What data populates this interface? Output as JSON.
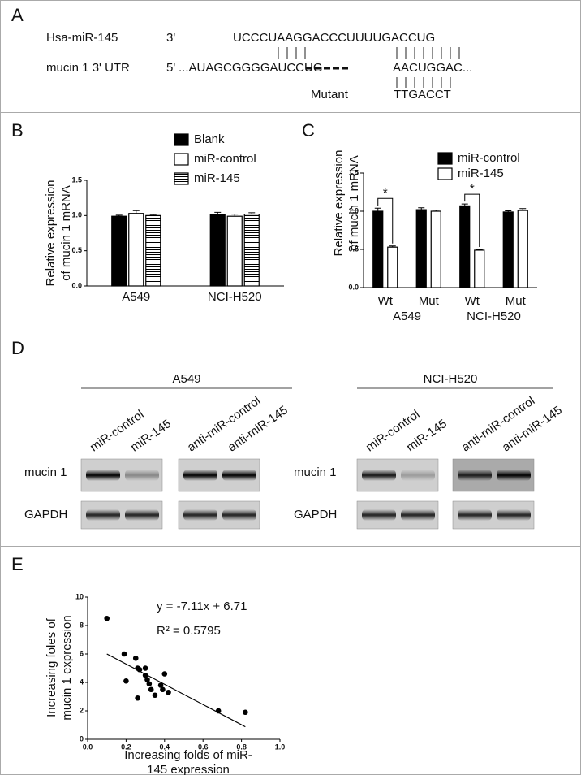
{
  "panel_labels": [
    "A",
    "B",
    "C",
    "D",
    "E"
  ],
  "sequence_alignment": {
    "rows": [
      {
        "name": "Hsa-miR-145",
        "end": "3'",
        "sequence": [
          "UCCCUAAGGACCCUUUUGACCUG"
        ]
      },
      {
        "name": "mucin 1 3' UTR",
        "end": "5'",
        "sequence": [
          "...AUAGCGGGGAUCCUG",
          "AACUGGAC..."
        ]
      }
    ],
    "mutant": {
      "label": "Mutant",
      "sequence": "TTGACCT"
    }
  },
  "western_blot": {
    "row_labels": [
      "mucin 1",
      "GAPDH"
    ],
    "groups": [
      {
        "title": "A549",
        "lanes": [
          "miR-control",
          "miR-145",
          "anti-miR-control",
          "anti-miR-145"
        ]
      },
      {
        "title": "NCI-H520",
        "lanes": [
          "miR-control",
          "miR-145",
          "anti-miR-control",
          "anti-miR-145"
        ]
      }
    ]
  },
  "chart_data": [
    {
      "type": "bar",
      "y_label": [
        "Relative expression",
        "of mucin 1 mRNA"
      ],
      "categories": [
        "A549",
        "NCI-H520"
      ],
      "series": [
        {
          "name": "Blank",
          "color": "#000000",
          "values": [
            0.99,
            1.02
          ],
          "errors": [
            0.015,
            0.025
          ]
        },
        {
          "name": "miR-control",
          "color": "#ffffff",
          "values": [
            1.03,
            0.99
          ],
          "errors": [
            0.04,
            0.03
          ]
        },
        {
          "name": "miR-145",
          "color": "#ffffff",
          "hatch": "horizontal",
          "values": [
            1.0,
            1.02
          ],
          "errors": [
            0.015,
            0.02
          ]
        }
      ],
      "ylim": [
        0,
        1.5
      ],
      "yticks": [
        {
          "value": 0,
          "label": "0.0"
        },
        0.5,
        {
          "value": 1,
          "label": "1.0"
        },
        1.5
      ]
    },
    {
      "type": "bar",
      "y_label": [
        "Relative expression",
        "of mucin 1 mRNA"
      ],
      "categories": [
        "Wt",
        "Mut",
        "Wt",
        "Mut"
      ],
      "groups": [
        {
          "label": "A549",
          "categories": [
            0,
            1
          ]
        },
        {
          "label": "NCI-H520",
          "categories": [
            2,
            3
          ]
        }
      ],
      "series": [
        {
          "name": "miR-control",
          "color": "#000000",
          "values": [
            1.0,
            1.02,
            1.07,
            0.99
          ],
          "errors": [
            0.04,
            0.025,
            0.025,
            0.015
          ]
        },
        {
          "name": "miR-145",
          "color": "#ffffff",
          "values": [
            0.53,
            1.0,
            0.49,
            1.01
          ],
          "errors": [
            0.015,
            0.015,
            0.01,
            0.025
          ]
        }
      ],
      "significance": [
        {
          "category": 0,
          "label": "*"
        },
        {
          "category": 2,
          "label": "*"
        }
      ],
      "ylim": [
        0,
        1.5
      ],
      "yticks": [
        {
          "value": 0,
          "label": "0.0"
        },
        0.5,
        {
          "value": 1,
          "label": "1.0"
        },
        1.5
      ]
    },
    {
      "type": "scatter",
      "x_label": [
        "Increasing folds of miR-",
        "145 expression"
      ],
      "y_label": [
        "Increasing foles of",
        "mucin 1 expression"
      ],
      "x": [
        0.1,
        0.19,
        0.2,
        0.25,
        0.26,
        0.27,
        0.26,
        0.3,
        0.3,
        0.31,
        0.32,
        0.33,
        0.35,
        0.38,
        0.39,
        0.4,
        0.42,
        0.68,
        0.82
      ],
      "values": [
        8.5,
        6.0,
        4.1,
        5.7,
        5.0,
        4.9,
        2.9,
        5.0,
        4.5,
        4.2,
        3.9,
        3.5,
        3.1,
        3.8,
        3.5,
        4.6,
        3.3,
        2.0,
        1.9
      ],
      "color": "#000000",
      "fit": {
        "slope": -7.11,
        "intercept": 6.71,
        "label": "y = -7.11x + 6.71"
      },
      "annotation": "R² = 0.5795",
      "xlim": [
        0,
        1
      ],
      "xticks": [
        {
          "value": 0,
          "label": "0.0"
        },
        0.2,
        0.4,
        0.6,
        0.8,
        {
          "value": 1,
          "label": "1.0"
        }
      ],
      "ylim": [
        0,
        10
      ],
      "yticks": [
        0,
        2,
        4,
        6,
        8,
        10
      ]
    }
  ]
}
